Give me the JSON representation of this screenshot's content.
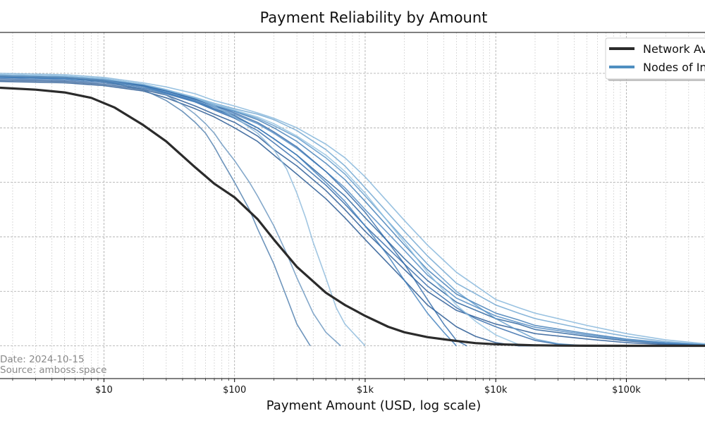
{
  "chart_data": {
    "type": "line",
    "title": "Payment Reliability by Amount",
    "xlabel": "Payment Amount (USD, log scale)",
    "ylabel": "",
    "x_scale": "log",
    "xlim": [
      1.6,
      400000
    ],
    "ylim": [
      -0.12,
      1.15
    ],
    "x_ticks": [
      {
        "value": 10,
        "label": "$10"
      },
      {
        "value": 100,
        "label": "$100"
      },
      {
        "value": 1000,
        "label": "$1k"
      },
      {
        "value": 10000,
        "label": "$10k"
      },
      {
        "value": 100000,
        "label": "$100k"
      }
    ],
    "y_gridlines": [
      0,
      0.2,
      0.4,
      0.6,
      0.8,
      1.0
    ],
    "grid": true,
    "legend": {
      "placement": "top-right",
      "entries": [
        {
          "label": "Network Average",
          "color": "#2b2b2b"
        },
        {
          "label": "Nodes of Interest",
          "color": "#4f8fc0"
        }
      ]
    },
    "annotations": [
      "Date: 2024-10-15",
      "Source: amboss.space"
    ],
    "series": [
      {
        "kind": "average",
        "color": "#2b2b2b",
        "x": [
          1.6,
          3,
          5,
          8,
          12,
          20,
          30,
          50,
          70,
          100,
          150,
          200,
          300,
          500,
          700,
          1000,
          1500,
          2000,
          3000,
          5000,
          7000,
          10000,
          15000,
          20000,
          30000,
          50000,
          100000,
          200000,
          400000
        ],
        "y": [
          0.947,
          0.94,
          0.93,
          0.91,
          0.875,
          0.81,
          0.75,
          0.655,
          0.595,
          0.545,
          0.465,
          0.39,
          0.29,
          0.195,
          0.15,
          0.11,
          0.07,
          0.05,
          0.032,
          0.018,
          0.01,
          0.006,
          0.004,
          0.002,
          0.001,
          0.0005,
          0.0003,
          0.0002,
          0.0002
        ]
      },
      {
        "kind": "node",
        "color": "#1f5a99",
        "x": [
          1.6,
          5,
          10,
          20,
          30,
          50,
          70,
          100,
          150,
          200,
          300,
          500,
          700,
          1000,
          2000,
          3000,
          5000,
          10000,
          15000,
          20000,
          50000,
          100000,
          200000,
          400000
        ],
        "y": [
          0.985,
          0.98,
          0.97,
          0.95,
          0.93,
          0.9,
          0.87,
          0.845,
          0.8,
          0.76,
          0.7,
          0.61,
          0.55,
          0.47,
          0.32,
          0.24,
          0.16,
          0.1,
          0.08,
          0.06,
          0.035,
          0.018,
          0.008,
          0.003
        ]
      },
      {
        "kind": "node",
        "color": "#3a78b4",
        "x": [
          1.6,
          5,
          10,
          20,
          30,
          50,
          70,
          100,
          150,
          200,
          300,
          500,
          700,
          1000,
          2000,
          3000,
          5000,
          10000,
          15000,
          20000,
          50000,
          100000,
          200000,
          400000
        ],
        "y": [
          0.99,
          0.985,
          0.975,
          0.955,
          0.935,
          0.905,
          0.88,
          0.86,
          0.83,
          0.8,
          0.75,
          0.67,
          0.61,
          0.53,
          0.37,
          0.28,
          0.19,
          0.12,
          0.095,
          0.075,
          0.045,
          0.025,
          0.012,
          0.004
        ]
      },
      {
        "kind": "node",
        "color": "#6aa3cf",
        "x": [
          1.6,
          5,
          10,
          20,
          30,
          50,
          70,
          100,
          150,
          200,
          300,
          500,
          700,
          1000,
          2000,
          3000,
          5000,
          10000,
          15000,
          20000,
          50000,
          100000,
          200000,
          400000
        ],
        "y": [
          0.995,
          0.99,
          0.98,
          0.96,
          0.94,
          0.91,
          0.89,
          0.87,
          0.85,
          0.83,
          0.79,
          0.72,
          0.66,
          0.58,
          0.42,
          0.33,
          0.23,
          0.15,
          0.12,
          0.1,
          0.06,
          0.035,
          0.016,
          0.005
        ]
      },
      {
        "kind": "node",
        "color": "#1e5190",
        "x": [
          1.6,
          5,
          10,
          20,
          30,
          50,
          70,
          100,
          150,
          200,
          300,
          500,
          700,
          1000,
          2000,
          3000,
          5000,
          10000,
          15000,
          20000,
          50000,
          100000,
          200000,
          400000
        ],
        "y": [
          0.975,
          0.97,
          0.96,
          0.94,
          0.92,
          0.88,
          0.85,
          0.82,
          0.77,
          0.72,
          0.66,
          0.57,
          0.5,
          0.42,
          0.28,
          0.2,
          0.13,
          0.08,
          0.06,
          0.045,
          0.025,
          0.012,
          0.005,
          0.002
        ]
      },
      {
        "kind": "node",
        "color": "#4a86c0",
        "x": [
          1.6,
          5,
          10,
          20,
          30,
          50,
          70,
          100,
          150,
          200,
          300,
          500,
          700,
          1000,
          2000,
          3000,
          5000,
          10000,
          15000,
          20000,
          50000,
          100000,
          200000,
          400000
        ],
        "y": [
          0.988,
          0.982,
          0.972,
          0.952,
          0.93,
          0.9,
          0.875,
          0.85,
          0.815,
          0.78,
          0.725,
          0.64,
          0.58,
          0.5,
          0.35,
          0.26,
          0.175,
          0.11,
          0.085,
          0.068,
          0.04,
          0.022,
          0.01,
          0.004
        ]
      },
      {
        "kind": "node",
        "color": "#7fb3da",
        "x": [
          1.6,
          5,
          10,
          20,
          30,
          50,
          70,
          100,
          150,
          200,
          300,
          500,
          700,
          1000,
          2000,
          3000,
          5000,
          10000,
          15000,
          20000,
          50000,
          100000,
          200000,
          400000
        ],
        "y": [
          1.0,
          0.995,
          0.985,
          0.965,
          0.95,
          0.925,
          0.9,
          0.88,
          0.855,
          0.835,
          0.8,
          0.74,
          0.69,
          0.62,
          0.46,
          0.37,
          0.27,
          0.17,
          0.14,
          0.12,
          0.075,
          0.045,
          0.022,
          0.008
        ]
      },
      {
        "kind": "node",
        "color": "#2a64a6",
        "x": [
          1.6,
          5,
          10,
          20,
          30,
          50,
          70,
          100,
          150,
          200,
          300,
          500,
          700,
          1000,
          2000,
          3000,
          5000,
          7000,
          10000,
          15000,
          20000,
          30000,
          50000,
          100000
        ],
        "y": [
          0.98,
          0.975,
          0.965,
          0.945,
          0.925,
          0.895,
          0.865,
          0.835,
          0.79,
          0.745,
          0.68,
          0.59,
          0.52,
          0.44,
          0.3,
          0.22,
          0.14,
          0.1,
          0.07,
          0.04,
          0.02,
          0.006,
          0.0,
          0.0
        ]
      },
      {
        "kind": "node",
        "color": "#5a96c9",
        "x": [
          1.6,
          5,
          10,
          20,
          30,
          50,
          70,
          100,
          150,
          200,
          300,
          500,
          700,
          1000,
          2000,
          3000,
          5000,
          7000,
          10000,
          15000,
          20000,
          30000,
          50000,
          100000
        ],
        "y": [
          0.992,
          0.987,
          0.977,
          0.957,
          0.937,
          0.908,
          0.885,
          0.862,
          0.835,
          0.808,
          0.765,
          0.69,
          0.63,
          0.55,
          0.39,
          0.3,
          0.2,
          0.15,
          0.1,
          0.055,
          0.025,
          0.008,
          0.0,
          0.0
        ]
      },
      {
        "kind": "node",
        "color": "#1b4f8c",
        "x": [
          1.6,
          5,
          10,
          20,
          30,
          50,
          70,
          100,
          150,
          200,
          300,
          500,
          700,
          1000,
          2000,
          3000,
          5000,
          7000,
          10000,
          15000,
          20000
        ],
        "y": [
          0.97,
          0.965,
          0.955,
          0.935,
          0.91,
          0.87,
          0.84,
          0.8,
          0.75,
          0.7,
          0.63,
          0.54,
          0.47,
          0.39,
          0.24,
          0.15,
          0.07,
          0.035,
          0.012,
          0.0,
          0.0
        ]
      },
      {
        "kind": "node",
        "color": "#8fbfe0",
        "x": [
          1.6,
          5,
          10,
          20,
          30,
          50,
          70,
          100,
          150,
          200,
          300,
          500,
          700,
          1000,
          2000,
          3000,
          5000,
          7000,
          10000,
          15000,
          20000
        ],
        "y": [
          0.995,
          0.99,
          0.98,
          0.96,
          0.94,
          0.912,
          0.89,
          0.865,
          0.84,
          0.815,
          0.77,
          0.7,
          0.64,
          0.56,
          0.38,
          0.27,
          0.15,
          0.09,
          0.04,
          0.005,
          0.0
        ]
      },
      {
        "kind": "node",
        "color": "#3d7dbb",
        "x": [
          1.6,
          5,
          10,
          20,
          30,
          50,
          70,
          100,
          150,
          200,
          300,
          500,
          700,
          1000,
          1500,
          2000,
          3000,
          4000,
          5000
        ],
        "y": [
          0.985,
          0.98,
          0.97,
          0.95,
          0.928,
          0.895,
          0.868,
          0.84,
          0.8,
          0.76,
          0.7,
          0.6,
          0.53,
          0.44,
          0.33,
          0.24,
          0.12,
          0.05,
          0.0
        ]
      },
      {
        "kind": "node",
        "color": "#2c66a8",
        "x": [
          1.6,
          5,
          10,
          20,
          30,
          50,
          70,
          100,
          150,
          200,
          300,
          500,
          700,
          1000,
          1500,
          2000,
          3000,
          4000,
          5000,
          6000
        ],
        "y": [
          0.99,
          0.985,
          0.975,
          0.955,
          0.935,
          0.905,
          0.88,
          0.855,
          0.82,
          0.785,
          0.73,
          0.64,
          0.57,
          0.49,
          0.38,
          0.3,
          0.17,
          0.08,
          0.02,
          0.0
        ]
      },
      {
        "kind": "node",
        "color": "#4a7aab",
        "x": [
          1.6,
          5,
          10,
          20,
          30,
          40,
          50,
          60,
          70,
          80,
          100,
          130,
          150,
          200,
          250,
          300,
          380
        ],
        "y": [
          0.99,
          0.985,
          0.97,
          0.94,
          0.9,
          0.86,
          0.82,
          0.78,
          0.73,
          0.68,
          0.6,
          0.5,
          0.43,
          0.3,
          0.18,
          0.08,
          0.0
        ]
      },
      {
        "kind": "node",
        "color": "#6592bd",
        "x": [
          1.6,
          5,
          10,
          20,
          30,
          40,
          50,
          60,
          70,
          80,
          100,
          130,
          150,
          200,
          250,
          300,
          400,
          500,
          650
        ],
        "y": [
          0.99,
          0.985,
          0.975,
          0.95,
          0.92,
          0.885,
          0.85,
          0.815,
          0.78,
          0.74,
          0.68,
          0.6,
          0.55,
          0.44,
          0.34,
          0.25,
          0.12,
          0.05,
          0.0
        ]
      },
      {
        "kind": "node",
        "color": "#8ab8db",
        "x": [
          1.6,
          5,
          10,
          20,
          30,
          50,
          70,
          100,
          150,
          200,
          250,
          300,
          350,
          400,
          500,
          600,
          700,
          1000
        ],
        "y": [
          0.995,
          0.99,
          0.98,
          0.96,
          0.94,
          0.91,
          0.88,
          0.84,
          0.78,
          0.72,
          0.65,
          0.56,
          0.47,
          0.38,
          0.25,
          0.14,
          0.08,
          0.0
        ]
      }
    ]
  }
}
